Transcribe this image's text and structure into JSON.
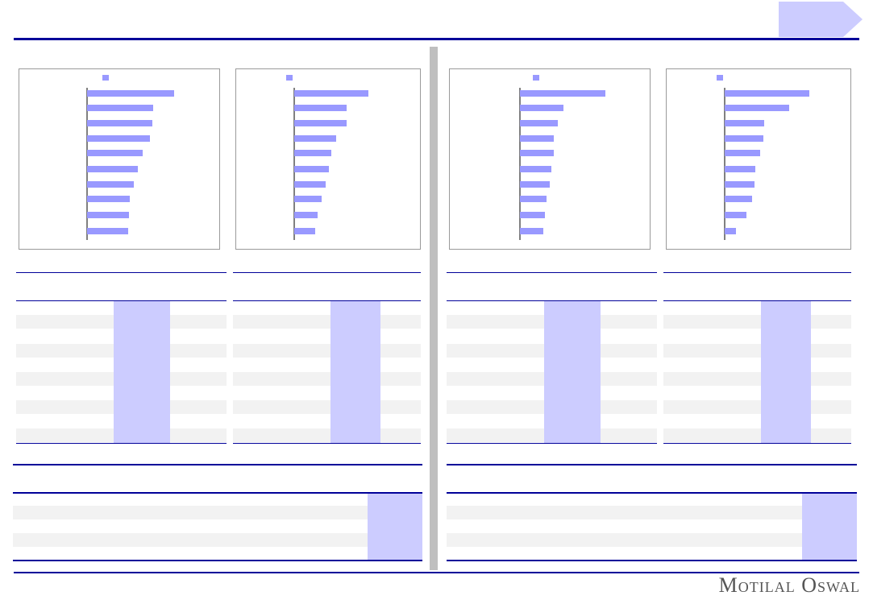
{
  "brand": {
    "logo_text": "Motilal Oswal",
    "accent": "#000099",
    "highlight": "#ccccff",
    "bar_color": "#9999ff"
  },
  "chart_data": [
    {
      "type": "bar",
      "orientation": "horizontal",
      "values": [
        108,
        82,
        81,
        78,
        69,
        63,
        58,
        53,
        52,
        51
      ]
    },
    {
      "type": "bar",
      "orientation": "horizontal",
      "values": [
        92,
        65,
        65,
        52,
        46,
        43,
        39,
        34,
        29,
        26
      ]
    },
    {
      "type": "bar",
      "orientation": "horizontal",
      "values": [
        106,
        54,
        47,
        42,
        42,
        39,
        37,
        33,
        31,
        29
      ]
    },
    {
      "type": "bar",
      "orientation": "horizontal",
      "values": [
        105,
        80,
        49,
        48,
        44,
        38,
        37,
        34,
        27,
        14
      ]
    }
  ]
}
